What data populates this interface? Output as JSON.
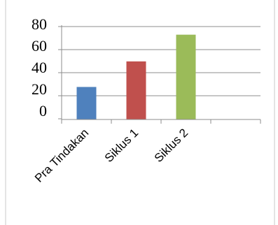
{
  "chart_data": {
    "type": "bar",
    "categories": [
      "Pra Tindakan",
      "Siklus 1",
      "Siklus 2"
    ],
    "values": [
      28,
      50,
      73
    ],
    "colors": [
      "#4f81bd",
      "#c0504d",
      "#9bbb59"
    ],
    "y_ticks": [
      "80",
      "60",
      "40",
      "20",
      "0"
    ],
    "ylim": [
      0,
      80
    ],
    "category_slots": 4,
    "grid": true,
    "legend": false,
    "title": "",
    "xlabel": "",
    "ylabel": ""
  }
}
